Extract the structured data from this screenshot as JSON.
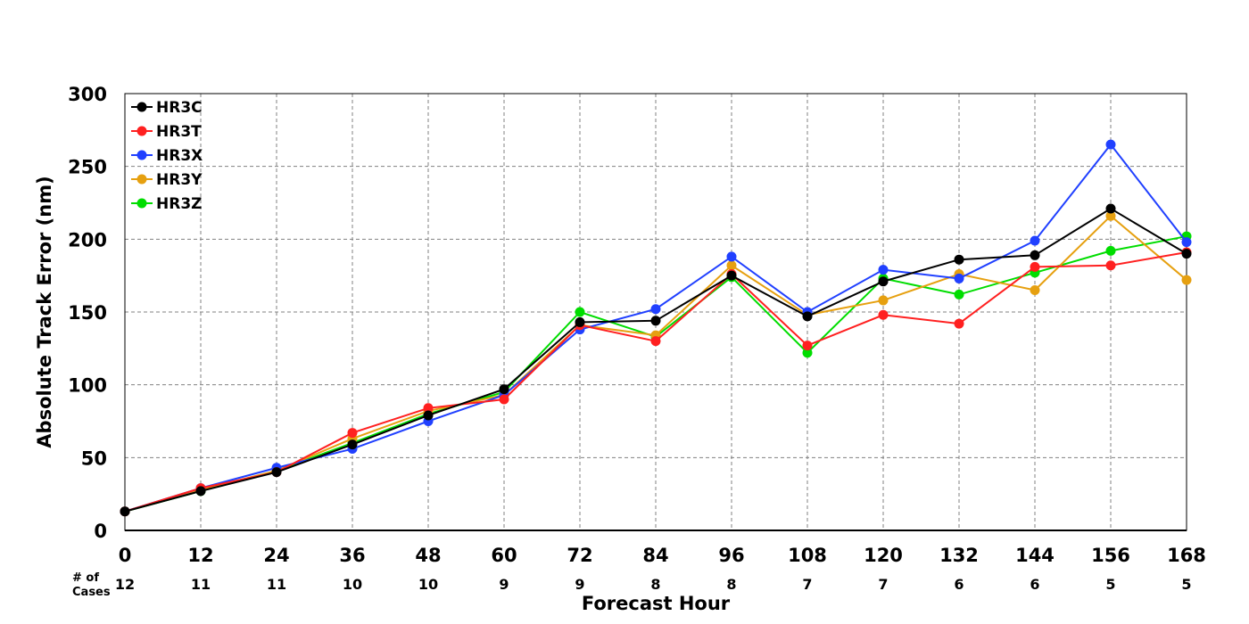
{
  "chart_data": {
    "type": "line",
    "xlabel": "Forecast Hour",
    "ylabel": "Absolute Track Error (nm)",
    "x": [
      0,
      12,
      24,
      36,
      48,
      60,
      72,
      84,
      96,
      108,
      120,
      132,
      144,
      156,
      168
    ],
    "xlim": [
      0,
      168
    ],
    "ylim": [
      0,
      300
    ],
    "yticks": [
      0,
      50,
      100,
      150,
      200,
      250,
      300
    ],
    "grid": true,
    "legend_position": "top-left",
    "cases_label_line1": "# of",
    "cases_label_line2": "Cases",
    "cases": [
      12,
      11,
      11,
      10,
      10,
      9,
      9,
      8,
      8,
      7,
      7,
      6,
      6,
      5,
      5
    ],
    "series": [
      {
        "name": "HR3Z",
        "color": "#00dd00",
        "values": [
          13,
          27,
          41,
          60,
          80,
          95,
          150,
          133,
          174,
          122,
          173,
          162,
          177,
          192,
          202
        ]
      },
      {
        "name": "HR3Y",
        "color": "#e6a010",
        "values": [
          13,
          28,
          41,
          63,
          82,
          93,
          141,
          134,
          182,
          148,
          158,
          176,
          165,
          216,
          172
        ]
      },
      {
        "name": "HR3X",
        "color": "#2040ff",
        "values": [
          13,
          29,
          43,
          56,
          75,
          93,
          138,
          152,
          188,
          150,
          179,
          173,
          199,
          265,
          198
        ]
      },
      {
        "name": "HR3T",
        "color": "#ff2020",
        "values": [
          13,
          29,
          40,
          67,
          84,
          90,
          141,
          130,
          176,
          127,
          148,
          142,
          181,
          182,
          191
        ]
      },
      {
        "name": "HR3C",
        "color": "#000000",
        "values": [
          13,
          27,
          40,
          59,
          79,
          97,
          143,
          144,
          175,
          147,
          171,
          186,
          189,
          221,
          190
        ]
      }
    ],
    "legend_order": [
      "HR3C",
      "HR3T",
      "HR3X",
      "HR3Y",
      "HR3Z"
    ]
  }
}
